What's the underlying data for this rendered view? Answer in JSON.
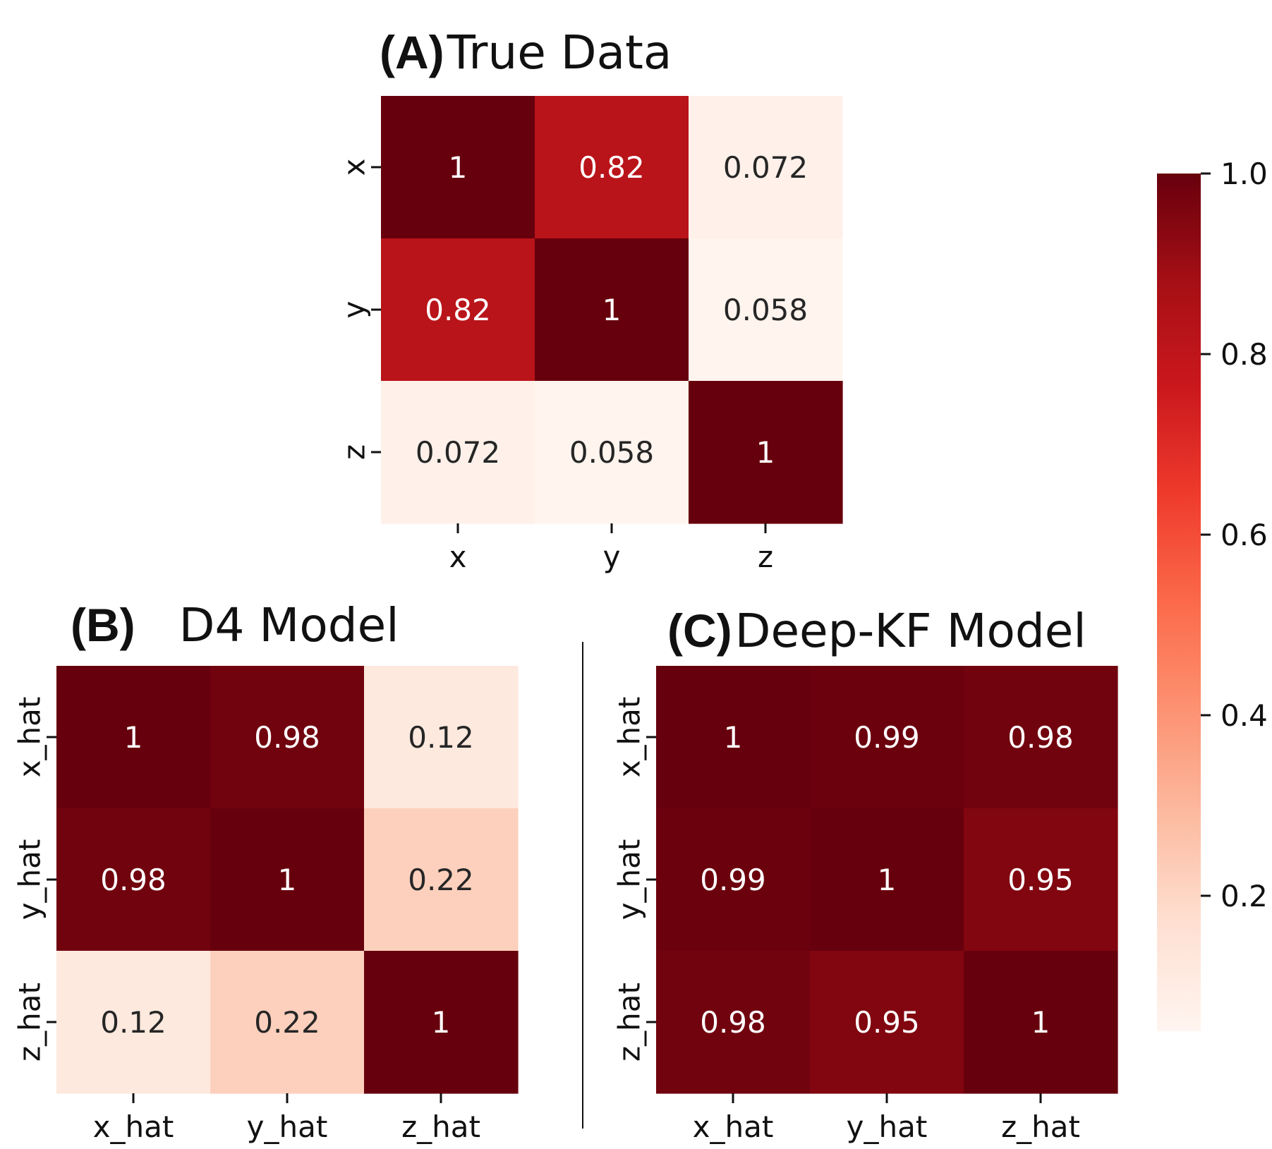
{
  "chart_data": [
    {
      "type": "heatmap",
      "panel_label": "(A)",
      "title": "True Data",
      "x_tick_labels": [
        "x",
        "y",
        "z"
      ],
      "y_tick_labels": [
        "x",
        "y",
        "z"
      ],
      "values": [
        [
          1,
          0.82,
          0.072
        ],
        [
          0.82,
          1,
          0.058
        ],
        [
          0.072,
          0.058,
          1
        ]
      ],
      "value_labels": [
        [
          "1",
          "0.82",
          "0.072"
        ],
        [
          "0.82",
          "1",
          "0.058"
        ],
        [
          "0.072",
          "0.058",
          "1"
        ]
      ]
    },
    {
      "type": "heatmap",
      "panel_label": "(B)",
      "title": "D4 Model",
      "x_tick_labels": [
        "x_hat",
        "y_hat",
        "z_hat"
      ],
      "y_tick_labels": [
        "x_hat",
        "y_hat",
        "z_hat"
      ],
      "values": [
        [
          1,
          0.98,
          0.12
        ],
        [
          0.98,
          1,
          0.22
        ],
        [
          0.12,
          0.22,
          1
        ]
      ],
      "value_labels": [
        [
          "1",
          "0.98",
          "0.12"
        ],
        [
          "0.98",
          "1",
          "0.22"
        ],
        [
          "0.12",
          "0.22",
          "1"
        ]
      ]
    },
    {
      "type": "heatmap",
      "panel_label": "(C)",
      "title": "Deep-KF Model",
      "x_tick_labels": [
        "x_hat",
        "y_hat",
        "z_hat"
      ],
      "y_tick_labels": [
        "x_hat",
        "y_hat",
        "z_hat"
      ],
      "values": [
        [
          1,
          0.99,
          0.98
        ],
        [
          0.99,
          1,
          0.95
        ],
        [
          0.98,
          0.95,
          1
        ]
      ],
      "value_labels": [
        [
          "1",
          "0.99",
          "0.98"
        ],
        [
          "0.99",
          "1",
          "0.95"
        ],
        [
          "0.98",
          "0.95",
          "1"
        ]
      ]
    }
  ],
  "colorbar": {
    "colormap": "Reds",
    "range": [
      0.05,
      1.0
    ],
    "ticks": [
      1.0,
      0.8,
      0.6,
      0.4,
      0.2
    ],
    "tick_labels": [
      "1.0",
      "0.8",
      "0.6",
      "0.4",
      "0.2"
    ]
  }
}
